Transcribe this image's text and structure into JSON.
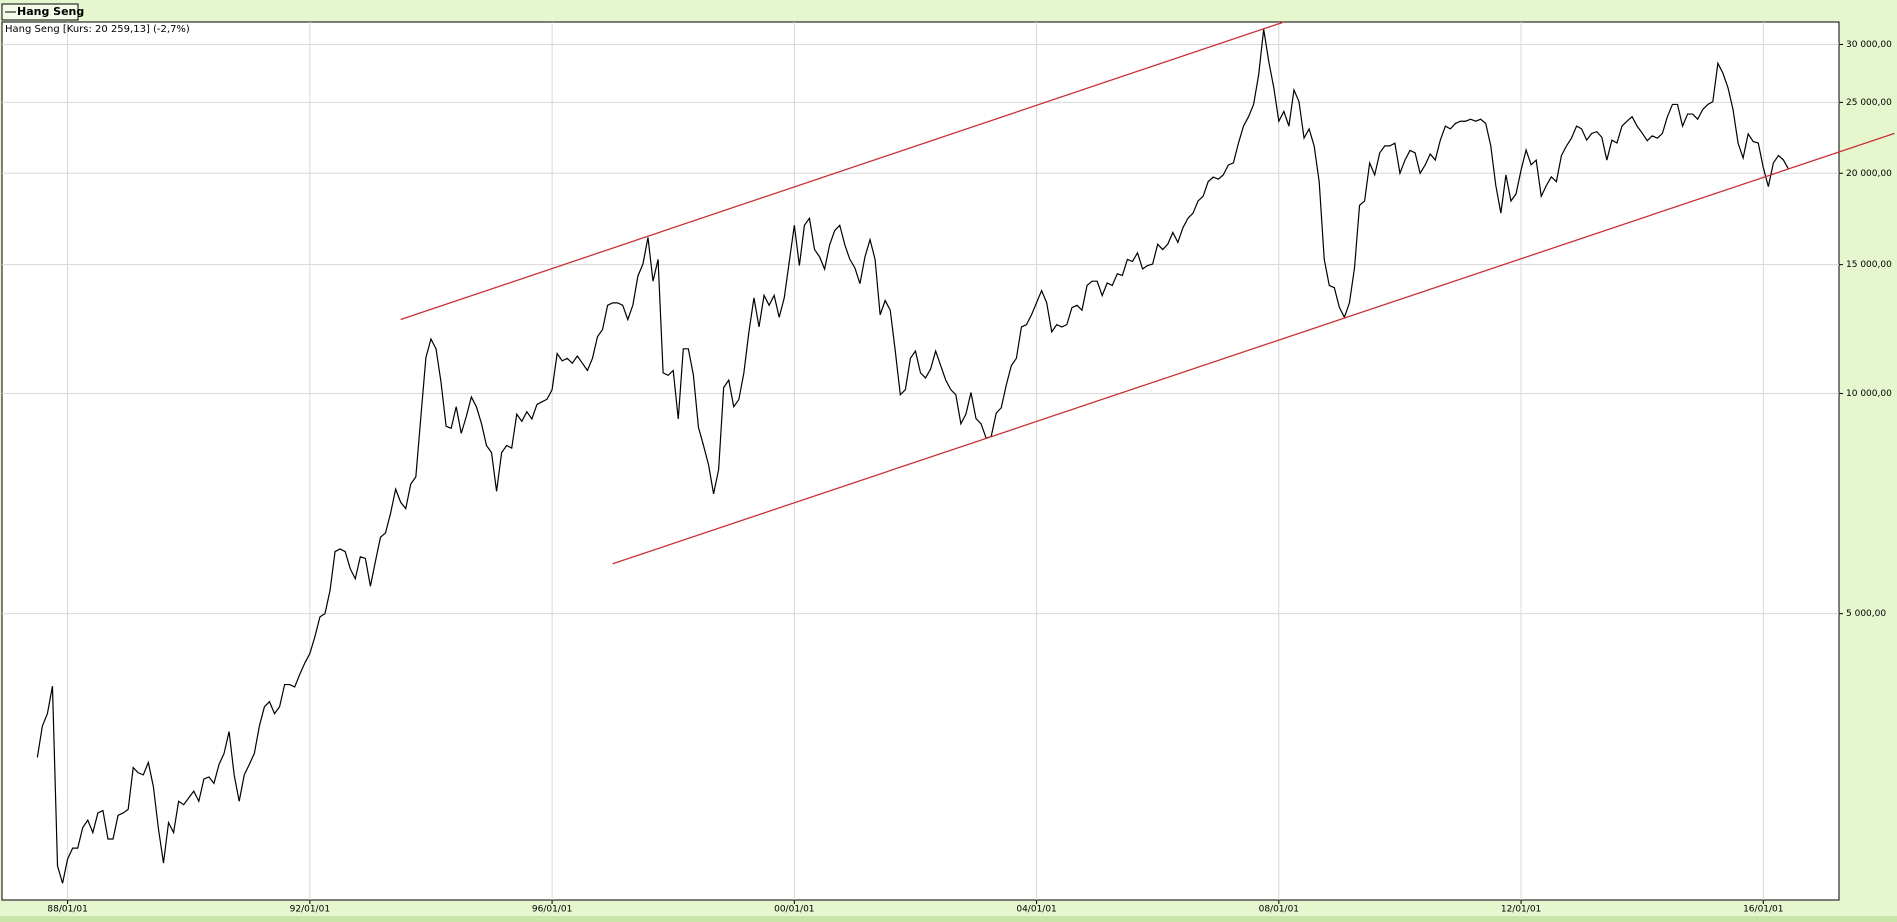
{
  "chart_data": {
    "type": "line",
    "log_scale": true,
    "grid": true,
    "subtitle": "Hang Seng [Kurs: 20 259,13] (-2,7%)",
    "xlim": [
      "1986-12",
      "2017-04"
    ],
    "xticks": [
      {
        "value": "1988-01",
        "label": "88/01/01"
      },
      {
        "value": "1992-01",
        "label": "92/01/01"
      },
      {
        "value": "1996-01",
        "label": "96/01/01"
      },
      {
        "value": "2000-01",
        "label": "00/01/01"
      },
      {
        "value": "2004-01",
        "label": "04/01/01"
      },
      {
        "value": "2008-01",
        "label": "08/01/01"
      },
      {
        "value": "2012-01",
        "label": "12/01/01"
      },
      {
        "value": "2016-01",
        "label": "16/01/01"
      }
    ],
    "ylim": [
      2030,
      32200
    ],
    "yticks": [
      {
        "value": 5000,
        "label": "5 000,00"
      },
      {
        "value": 10000,
        "label": "10 000,00"
      },
      {
        "value": 15000,
        "label": "15 000,00"
      },
      {
        "value": 20000,
        "label": "20 000,00"
      },
      {
        "value": 25000,
        "label": "25 000,00"
      },
      {
        "value": 30000,
        "label": "30 000,00"
      }
    ],
    "x": [
      "1987-07",
      "1987-08",
      "1987-09",
      "1987-10",
      "1987-11",
      "1987-12",
      "1988-01",
      "1988-02",
      "1988-03",
      "1988-04",
      "1988-05",
      "1988-06",
      "1988-07",
      "1988-08",
      "1988-09",
      "1988-10",
      "1988-11",
      "1988-12",
      "1989-01",
      "1989-02",
      "1989-03",
      "1989-04",
      "1989-05",
      "1989-06",
      "1989-07",
      "1989-08",
      "1989-09",
      "1989-10",
      "1989-11",
      "1989-12",
      "1990-01",
      "1990-02",
      "1990-03",
      "1990-04",
      "1990-05",
      "1990-06",
      "1990-07",
      "1990-08",
      "1990-09",
      "1990-10",
      "1990-11",
      "1990-12",
      "1991-01",
      "1991-02",
      "1991-03",
      "1991-04",
      "1991-05",
      "1991-06",
      "1991-07",
      "1991-08",
      "1991-09",
      "1991-10",
      "1991-11",
      "1991-12",
      "1992-01",
      "1992-02",
      "1992-03",
      "1992-04",
      "1992-05",
      "1992-06",
      "1992-07",
      "1992-08",
      "1992-09",
      "1992-10",
      "1992-11",
      "1992-12",
      "1993-01",
      "1993-02",
      "1993-03",
      "1993-04",
      "1993-05",
      "1993-06",
      "1993-07",
      "1993-08",
      "1993-09",
      "1993-10",
      "1993-11",
      "1993-12",
      "1994-01",
      "1994-02",
      "1994-03",
      "1994-04",
      "1994-05",
      "1994-06",
      "1994-07",
      "1994-08",
      "1994-09",
      "1994-10",
      "1994-11",
      "1994-12",
      "1995-01",
      "1995-02",
      "1995-03",
      "1995-04",
      "1995-05",
      "1995-06",
      "1995-07",
      "1995-08",
      "1995-09",
      "1995-10",
      "1995-11",
      "1995-12",
      "1996-01",
      "1996-02",
      "1996-03",
      "1996-04",
      "1996-05",
      "1996-06",
      "1996-07",
      "1996-08",
      "1996-09",
      "1996-10",
      "1996-11",
      "1996-12",
      "1997-01",
      "1997-02",
      "1997-03",
      "1997-04",
      "1997-05",
      "1997-06",
      "1997-07",
      "1997-08",
      "1997-09",
      "1997-10",
      "1997-11",
      "1997-12",
      "1998-01",
      "1998-02",
      "1998-03",
      "1998-04",
      "1998-05",
      "1998-06",
      "1998-07",
      "1998-08",
      "1998-09",
      "1998-10",
      "1998-11",
      "1998-12",
      "1999-01",
      "1999-02",
      "1999-03",
      "1999-04",
      "1999-05",
      "1999-06",
      "1999-07",
      "1999-08",
      "1999-09",
      "1999-10",
      "1999-11",
      "1999-12",
      "2000-01",
      "2000-02",
      "2000-03",
      "2000-04",
      "2000-05",
      "2000-06",
      "2000-07",
      "2000-08",
      "2000-09",
      "2000-10",
      "2000-11",
      "2000-12",
      "2001-01",
      "2001-02",
      "2001-03",
      "2001-04",
      "2001-05",
      "2001-06",
      "2001-07",
      "2001-08",
      "2001-09",
      "2001-10",
      "2001-11",
      "2001-12",
      "2002-01",
      "2002-02",
      "2002-03",
      "2002-04",
      "2002-05",
      "2002-06",
      "2002-07",
      "2002-08",
      "2002-09",
      "2002-10",
      "2002-11",
      "2002-12",
      "2003-01",
      "2003-02",
      "2003-03",
      "2003-04",
      "2003-05",
      "2003-06",
      "2003-07",
      "2003-08",
      "2003-09",
      "2003-10",
      "2003-11",
      "2003-12",
      "2004-01",
      "2004-02",
      "2004-03",
      "2004-04",
      "2004-05",
      "2004-06",
      "2004-07",
      "2004-08",
      "2004-09",
      "2004-10",
      "2004-11",
      "2004-12",
      "2005-01",
      "2005-02",
      "2005-03",
      "2005-04",
      "2005-05",
      "2005-06",
      "2005-07",
      "2005-08",
      "2005-09",
      "2005-10",
      "2005-11",
      "2005-12",
      "2006-01",
      "2006-02",
      "2006-03",
      "2006-04",
      "2006-05",
      "2006-06",
      "2006-07",
      "2006-08",
      "2006-09",
      "2006-10",
      "2006-11",
      "2006-12",
      "2007-01",
      "2007-02",
      "2007-03",
      "2007-04",
      "2007-05",
      "2007-06",
      "2007-07",
      "2007-08",
      "2007-09",
      "2007-10",
      "2007-11",
      "2007-12",
      "2008-01",
      "2008-02",
      "2008-03",
      "2008-04",
      "2008-05",
      "2008-06",
      "2008-07",
      "2008-08",
      "2008-09",
      "2008-10",
      "2008-11",
      "2008-12",
      "2009-01",
      "2009-02",
      "2009-03",
      "2009-04",
      "2009-05",
      "2009-06",
      "2009-07",
      "2009-08",
      "2009-09",
      "2009-10",
      "2009-11",
      "2009-12",
      "2010-01",
      "2010-02",
      "2010-03",
      "2010-04",
      "2010-05",
      "2010-06",
      "2010-07",
      "2010-08",
      "2010-09",
      "2010-10",
      "2010-11",
      "2010-12",
      "2011-01",
      "2011-02",
      "2011-03",
      "2011-04",
      "2011-05",
      "2011-06",
      "2011-07",
      "2011-08",
      "2011-09",
      "2011-10",
      "2011-11",
      "2011-12",
      "2012-01",
      "2012-02",
      "2012-03",
      "2012-04",
      "2012-05",
      "2012-06",
      "2012-07",
      "2012-08",
      "2012-09",
      "2012-10",
      "2012-11",
      "2012-12",
      "2013-01",
      "2013-02",
      "2013-03",
      "2013-04",
      "2013-05",
      "2013-06",
      "2013-07",
      "2013-08",
      "2013-09",
      "2013-10",
      "2013-11",
      "2013-12",
      "2014-01",
      "2014-02",
      "2014-03",
      "2014-04",
      "2014-05",
      "2014-06",
      "2014-07",
      "2014-08",
      "2014-09",
      "2014-10",
      "2014-11",
      "2014-12",
      "2015-01",
      "2015-02",
      "2015-03",
      "2015-04",
      "2015-05",
      "2015-06",
      "2015-07",
      "2015-08",
      "2015-09",
      "2015-10",
      "2015-11",
      "2015-12",
      "2016-01",
      "2016-02",
      "2016-03",
      "2016-04",
      "2016-05",
      "2016-06"
    ],
    "series": [
      {
        "name": "Hang Seng",
        "color": "#000000",
        "values": [
          3180,
          3510,
          3650,
          3980,
          2260,
          2140,
          2310,
          2390,
          2390,
          2550,
          2610,
          2510,
          2670,
          2690,
          2460,
          2460,
          2650,
          2670,
          2700,
          3080,
          3030,
          3010,
          3130,
          2900,
          2540,
          2280,
          2590,
          2510,
          2770,
          2740,
          2800,
          2860,
          2770,
          2970,
          2990,
          2930,
          3110,
          3220,
          3450,
          3010,
          2770,
          3010,
          3110,
          3220,
          3510,
          3730,
          3790,
          3650,
          3730,
          4000,
          4000,
          3970,
          4130,
          4280,
          4410,
          4650,
          4950,
          5000,
          5380,
          6080,
          6130,
          6080,
          5760,
          5580,
          5980,
          5950,
          5450,
          5900,
          6360,
          6450,
          6860,
          7400,
          7100,
          6960,
          7520,
          7690,
          9300,
          11200,
          11870,
          11510,
          10350,
          9020,
          8960,
          9590,
          8820,
          9300,
          9890,
          9590,
          9100,
          8490,
          8300,
          7350,
          8300,
          8490,
          8420,
          9370,
          9160,
          9440,
          9230,
          9660,
          9740,
          9820,
          10120,
          11340,
          11080,
          11170,
          11000,
          11250,
          11000,
          10750,
          11170,
          11960,
          12230,
          13200,
          13300,
          13300,
          13200,
          12620,
          13200,
          14470,
          15030,
          16340,
          14240,
          15250,
          10670,
          10590,
          10750,
          9230,
          11510,
          11510,
          10590,
          8990,
          8490,
          7990,
          7290,
          7870,
          10190,
          10430,
          9590,
          9810,
          10670,
          12140,
          13510,
          12330,
          13620,
          13200,
          13620,
          12710,
          13510,
          15150,
          16980,
          14960,
          16980,
          17360,
          15730,
          15380,
          14790,
          15970,
          16700,
          16980,
          15970,
          15250,
          14850,
          14130,
          15380,
          16230,
          15250,
          12810,
          13400,
          13000,
          11430,
          9960,
          10120,
          11170,
          11430,
          10670,
          10500,
          10800,
          11430,
          10920,
          10430,
          10120,
          9960,
          9090,
          9370,
          10030,
          9240,
          9090,
          8690,
          8730,
          9400,
          9560,
          10270,
          10920,
          11170,
          12330,
          12420,
          12810,
          13310,
          13820,
          13310,
          12140,
          12420,
          12330,
          12420,
          13100,
          13200,
          13000,
          14050,
          14240,
          14240,
          13610,
          14160,
          14050,
          14580,
          14500,
          15250,
          15150,
          15570,
          14800,
          14960,
          15030,
          16000,
          15730,
          16000,
          16600,
          16090,
          16850,
          17360,
          17640,
          18330,
          18600,
          19480,
          19760,
          19630,
          19900,
          20530,
          20660,
          21990,
          23200,
          23900,
          24840,
          27250,
          31470,
          28450,
          26190,
          23560,
          24300,
          23200,
          26000,
          25060,
          22340,
          23000,
          21800,
          19480,
          15250,
          14050,
          13950,
          13110,
          12710,
          13310,
          14850,
          18080,
          18330,
          20660,
          19900,
          21330,
          21800,
          21800,
          21990,
          20000,
          20850,
          21490,
          21330,
          20000,
          20530,
          21250,
          20850,
          22200,
          23200,
          23000,
          23400,
          23560,
          23560,
          23710,
          23560,
          23710,
          23400,
          21800,
          19240,
          17640,
          19900,
          18330,
          18740,
          20200,
          21520,
          20540,
          20850,
          18600,
          19240,
          19780,
          19480,
          21150,
          21800,
          22340,
          23200,
          23000,
          22200,
          22670,
          22800,
          22400,
          20850,
          22200,
          22000,
          23200,
          23560,
          23900,
          23200,
          22700,
          22160,
          22500,
          22340,
          22670,
          23900,
          24840,
          24840,
          23200,
          24100,
          24100,
          23710,
          24450,
          24840,
          25060,
          28280,
          27400,
          26190,
          24450,
          21990,
          20990,
          22640,
          22100,
          22000,
          20360,
          19180,
          20660,
          21150,
          20850,
          20260
        ]
      }
    ],
    "trendlines": [
      {
        "color": "#c83232",
        "x": [
          "1993-07",
          "2008-02"
        ],
        "values": [
          12620,
          32200
        ]
      },
      {
        "color": "#c83232",
        "x": [
          "1997-01",
          "2018-03"
        ],
        "values": [
          5850,
          22680
        ]
      }
    ]
  }
}
